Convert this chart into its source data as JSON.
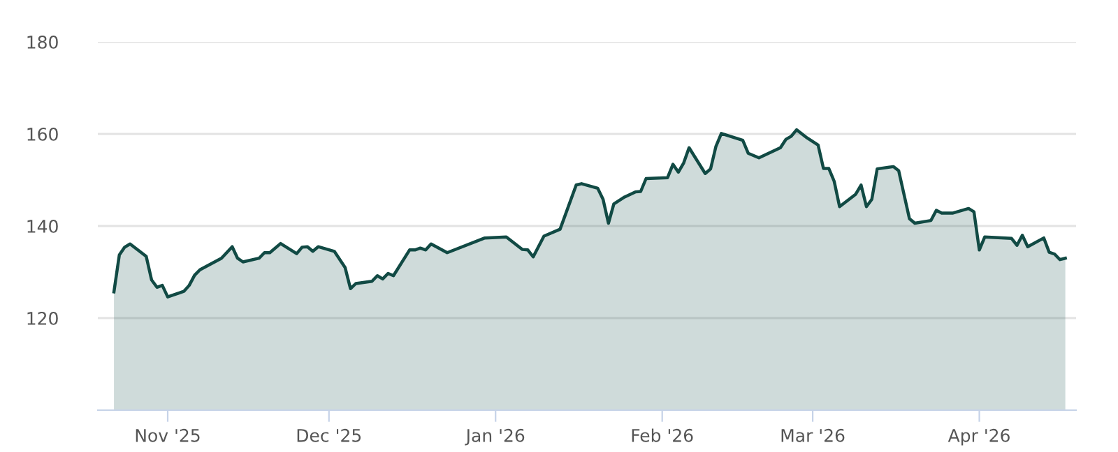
{
  "chart_data": {
    "type": "area",
    "x": [
      "2025-10-22",
      "2025-10-23",
      "2025-10-24",
      "2025-10-25",
      "2025-10-28",
      "2025-10-29",
      "2025-10-30",
      "2025-10-31",
      "2025-11-01",
      "2025-11-04",
      "2025-11-05",
      "2025-11-06",
      "2025-11-07",
      "2025-11-11",
      "2025-11-13",
      "2025-11-14",
      "2025-11-15",
      "2025-11-18",
      "2025-11-19",
      "2025-11-20",
      "2025-11-22",
      "2025-11-25",
      "2025-11-26",
      "2025-11-27",
      "2025-11-28",
      "2025-11-29",
      "2025-12-02",
      "2025-12-04",
      "2025-12-05",
      "2025-12-06",
      "2025-12-09",
      "2025-12-10",
      "2025-12-11",
      "2025-12-12",
      "2025-12-13",
      "2025-12-16",
      "2025-12-17",
      "2025-12-18",
      "2025-12-19",
      "2025-12-20",
      "2025-12-23",
      "2025-12-30",
      "2026-01-03",
      "2026-01-06",
      "2026-01-07",
      "2026-01-08",
      "2026-01-10",
      "2026-01-13",
      "2026-01-16",
      "2026-01-17",
      "2026-01-20",
      "2026-01-21",
      "2026-01-22",
      "2026-01-23",
      "2026-01-25",
      "2026-01-27",
      "2026-01-28",
      "2026-01-29",
      "2026-02-02",
      "2026-02-03",
      "2026-02-04",
      "2026-02-05",
      "2026-02-06",
      "2026-02-09",
      "2026-02-10",
      "2026-02-11",
      "2026-02-12",
      "2026-02-16",
      "2026-02-17",
      "2026-02-19",
      "2026-02-23",
      "2026-02-24",
      "2026-02-25",
      "2026-02-26",
      "2026-02-28",
      "2026-03-02",
      "2026-03-03",
      "2026-03-04",
      "2026-03-05",
      "2026-03-06",
      "2026-03-09",
      "2026-03-10",
      "2026-03-11",
      "2026-03-12",
      "2026-03-13",
      "2026-03-16",
      "2026-03-17",
      "2026-03-19",
      "2026-03-20",
      "2026-03-23",
      "2026-03-24",
      "2026-03-25",
      "2026-03-27",
      "2026-03-30",
      "2026-03-31",
      "2026-04-01",
      "2026-04-02",
      "2026-04-07",
      "2026-04-08",
      "2026-04-09",
      "2026-04-10",
      "2026-04-13",
      "2026-04-14",
      "2026-04-15",
      "2026-04-16",
      "2026-04-17"
    ],
    "series": [
      {
        "color": "#114a44",
        "values": [
          125.7,
          133.7,
          135.4,
          136.1,
          133.4,
          128.3,
          126.7,
          127.1,
          124.6,
          125.8,
          127.1,
          129.3,
          130.5,
          133.0,
          135.5,
          133.0,
          132.2,
          133.0,
          134.2,
          134.2,
          136.2,
          134.0,
          135.4,
          135.5,
          134.5,
          135.5,
          134.5,
          131.0,
          126.4,
          127.5,
          128.0,
          129.2,
          128.5,
          129.7,
          129.2,
          134.8,
          134.8,
          135.2,
          134.8,
          136.1,
          134.2,
          137.4,
          137.6,
          134.9,
          134.8,
          133.3,
          137.8,
          139.3,
          148.9,
          149.2,
          148.2,
          145.8,
          140.6,
          144.8,
          146.3,
          147.4,
          147.5,
          150.3,
          150.5,
          153.4,
          151.7,
          153.7,
          157.0,
          151.4,
          152.4,
          157.3,
          160.1,
          158.6,
          155.8,
          154.8,
          157.0,
          158.8,
          159.5,
          160.9,
          159.1,
          157.6,
          152.5,
          152.5,
          149.7,
          144.2,
          146.9,
          148.9,
          144.2,
          145.8,
          152.4,
          152.9,
          152.0,
          141.6,
          140.6,
          141.2,
          143.4,
          142.8,
          142.8,
          143.8,
          143.1,
          134.8,
          137.6,
          137.3,
          135.8,
          138.0,
          135.5,
          137.4,
          134.3,
          133.9,
          132.7,
          133.0
        ]
      }
    ],
    "xlim": [
      "2025-10-19",
      "2026-04-19"
    ],
    "xticks": [
      {
        "value": "2025-11-01",
        "label": "Nov '25"
      },
      {
        "value": "2025-12-01",
        "label": "Dec '25"
      },
      {
        "value": "2026-01-01",
        "label": "Jan '26"
      },
      {
        "value": "2026-02-01",
        "label": "Feb '26"
      },
      {
        "value": "2026-03-01",
        "label": "Mar '26"
      },
      {
        "value": "2026-04-01",
        "label": "Apr '26"
      }
    ],
    "ylim": [
      100,
      180
    ],
    "yticks": [
      120,
      140,
      160,
      180
    ],
    "grid": "y",
    "legend": false
  }
}
